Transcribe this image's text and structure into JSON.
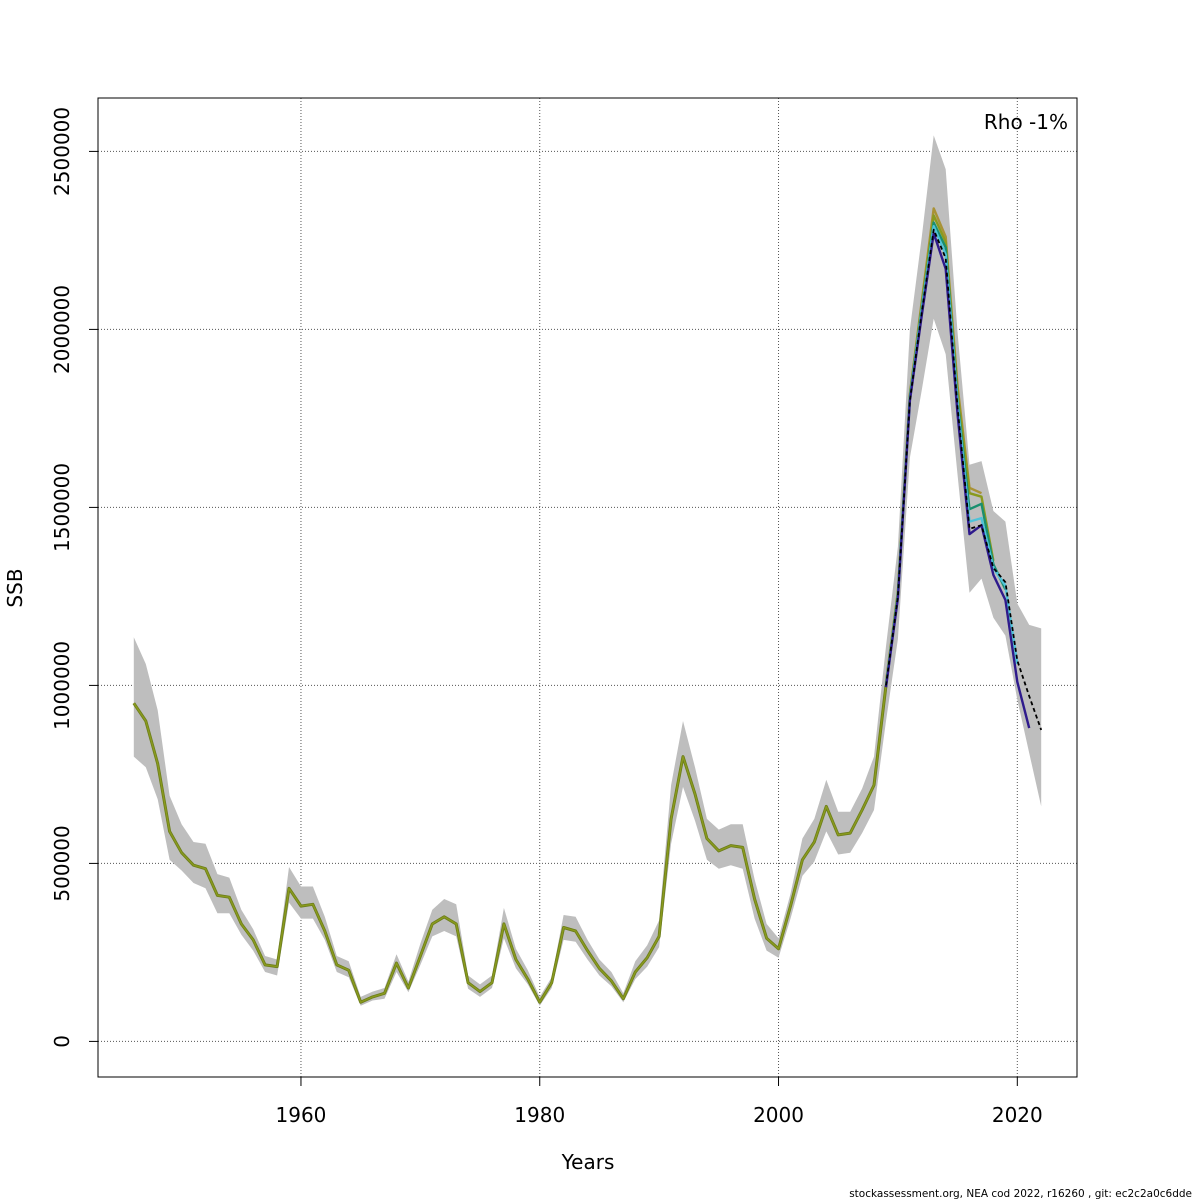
{
  "footer": "stockassessment.org, NEA  cod  2022, r16260 , git: ec2c2a0c6dde",
  "chart_data": {
    "type": "line",
    "title": "",
    "xlabel": "Years",
    "ylabel": "SSB",
    "annotation": "Rho -1%",
    "xlim": [
      1943,
      2025
    ],
    "ylim": [
      -100000,
      2650000
    ],
    "xticks": [
      1960,
      1980,
      2000,
      2020
    ],
    "yticks": [
      0,
      500000,
      1000000,
      1500000,
      2000000,
      2500000
    ],
    "grid": true,
    "colors": {
      "band": "#bebebe",
      "main": "#000000",
      "peel1": "#2e1a8c",
      "peel2": "#4fc3d9",
      "peel3": "#1a8f6f",
      "peel4": "#8a9a1e",
      "peel5": "#a99236",
      "grid": "#555555"
    },
    "years": [
      1946,
      1947,
      1948,
      1949,
      1950,
      1951,
      1952,
      1953,
      1954,
      1955,
      1956,
      1957,
      1958,
      1959,
      1960,
      1961,
      1962,
      1963,
      1964,
      1965,
      1966,
      1967,
      1968,
      1969,
      1970,
      1971,
      1972,
      1973,
      1974,
      1975,
      1976,
      1977,
      1978,
      1979,
      1980,
      1981,
      1982,
      1983,
      1984,
      1985,
      1986,
      1987,
      1988,
      1989,
      1990,
      1991,
      1992,
      1993,
      1994,
      1995,
      1996,
      1997,
      1998,
      1999,
      2000,
      2001,
      2002,
      2003,
      2004,
      2005,
      2006,
      2007,
      2008,
      2009,
      2010,
      2011,
      2012,
      2013,
      2014,
      2015,
      2016,
      2017,
      2018,
      2019,
      2020,
      2021,
      2022
    ],
    "ssb": [
      950000,
      900000,
      780000,
      590000,
      530000,
      495000,
      485000,
      410000,
      405000,
      330000,
      285000,
      215000,
      210000,
      430000,
      380000,
      385000,
      310000,
      215000,
      200000,
      110000,
      125000,
      135000,
      220000,
      150000,
      240000,
      330000,
      350000,
      330000,
      165000,
      140000,
      165000,
      330000,
      230000,
      175000,
      110000,
      165000,
      320000,
      310000,
      255000,
      205000,
      170000,
      120000,
      195000,
      235000,
      295000,
      625000,
      800000,
      695000,
      570000,
      535000,
      550000,
      545000,
      400000,
      290000,
      260000,
      380000,
      510000,
      560000,
      660000,
      580000,
      585000,
      650000,
      720000,
      1000000,
      1250000,
      1800000,
      2050000,
      2280000,
      2200000,
      1780000,
      1440000,
      1450000,
      1330000,
      1290000,
      1070000,
      970000,
      875000
    ],
    "lower": [
      800000,
      770000,
      680000,
      510000,
      480000,
      445000,
      430000,
      360000,
      360000,
      300000,
      255000,
      195000,
      185000,
      390000,
      345000,
      345000,
      285000,
      195000,
      180000,
      100000,
      115000,
      120000,
      195000,
      138000,
      215000,
      295000,
      310000,
      295000,
      148000,
      125000,
      150000,
      290000,
      205000,
      160000,
      100000,
      150000,
      285000,
      280000,
      230000,
      185000,
      155000,
      110000,
      175000,
      210000,
      265000,
      555000,
      715000,
      620000,
      510000,
      485000,
      495000,
      485000,
      345000,
      255000,
      235000,
      345000,
      465000,
      505000,
      590000,
      525000,
      530000,
      585000,
      650000,
      900000,
      1130000,
      1640000,
      1830000,
      2030000,
      1930000,
      1590000,
      1260000,
      1300000,
      1190000,
      1140000,
      960000,
      810000,
      660000
    ],
    "upper": [
      1135000,
      1060000,
      930000,
      690000,
      610000,
      560000,
      555000,
      470000,
      460000,
      370000,
      315000,
      240000,
      230000,
      490000,
      435000,
      435000,
      350000,
      240000,
      225000,
      125000,
      140000,
      150000,
      245000,
      168000,
      275000,
      370000,
      400000,
      385000,
      185000,
      160000,
      185000,
      375000,
      260000,
      200000,
      125000,
      180000,
      355000,
      350000,
      285000,
      230000,
      195000,
      135000,
      225000,
      270000,
      340000,
      720000,
      900000,
      770000,
      625000,
      595000,
      610000,
      610000,
      455000,
      330000,
      290000,
      415000,
      570000,
      625000,
      735000,
      645000,
      645000,
      710000,
      800000,
      1110000,
      1390000,
      2000000,
      2260000,
      2545000,
      2450000,
      1990000,
      1620000,
      1630000,
      1490000,
      1460000,
      1230000,
      1170000,
      1160000
    ],
    "series": [
      {
        "years": [
          1946,
          1947,
          1948,
          1949,
          1950,
          1951,
          1952,
          1953,
          1954,
          1955,
          1956,
          1957,
          1958,
          1959,
          1960,
          1961,
          1962,
          1963,
          1964,
          1965,
          1966,
          1967,
          1968,
          1969,
          1970,
          1971,
          1972,
          1973,
          1974,
          1975,
          1976,
          1977,
          1978,
          1979,
          1980,
          1981,
          1982,
          1983,
          1984,
          1985,
          1986,
          1987,
          1988,
          1989,
          1990,
          1991,
          1992,
          1993,
          1994,
          1995,
          1996,
          1997,
          1998,
          1999,
          2000,
          2001,
          2002,
          2003,
          2004,
          2005,
          2006,
          2007,
          2008,
          2009,
          2010,
          2011,
          2012,
          2013,
          2014,
          2015,
          2016,
          2017,
          2018,
          2019,
          2020,
          2021,
          2022
        ],
        "values": [
          950000,
          900000,
          780000,
          590000,
          530000,
          495000,
          485000,
          410000,
          405000,
          330000,
          285000,
          215000,
          210000,
          430000,
          380000,
          385000,
          310000,
          215000,
          200000,
          110000,
          125000,
          135000,
          220000,
          150000,
          240000,
          330000,
          350000,
          330000,
          165000,
          140000,
          165000,
          330000,
          230000,
          175000,
          110000,
          165000,
          320000,
          310000,
          255000,
          205000,
          170000,
          120000,
          195000,
          235000,
          295000,
          625000,
          800000,
          695000,
          570000,
          535000,
          550000,
          545000,
          400000,
          290000,
          260000,
          380000,
          510000,
          560000,
          660000,
          580000,
          585000,
          650000,
          720000,
          1000000,
          1250000,
          1800000,
          2050000,
          2280000,
          2200000,
          1780000,
          1440000,
          1450000,
          1330000,
          1290000,
          1070000,
          970000,
          875000
        ],
        "color": "#000000",
        "dash": true
      },
      {
        "years": [
          2009,
          2010,
          2011,
          2012,
          2013,
          2014,
          2015,
          2016,
          2017,
          2018,
          2019,
          2020,
          2021
        ],
        "values": [
          995000,
          1245000,
          1800000,
          2040000,
          2270000,
          2170000,
          1760000,
          1425000,
          1450000,
          1310000,
          1240000,
          1010000,
          880000
        ],
        "color": "#2e1a8c",
        "dash": false
      },
      {
        "years": [
          2009,
          2010,
          2011,
          2012,
          2013,
          2014,
          2015,
          2016,
          2017,
          2018,
          2019,
          2020
        ],
        "values": [
          1000000,
          1250000,
          1805000,
          2055000,
          2290000,
          2210000,
          1790000,
          1460000,
          1470000,
          1330000,
          1280000,
          1060000
        ],
        "color": "#4fc3d9",
        "dash": false
      },
      {
        "years": [
          2009,
          2010,
          2011,
          2012,
          2013,
          2014,
          2015,
          2016,
          2017,
          2018,
          2019
        ],
        "values": [
          1000000,
          1255000,
          1810000,
          2060000,
          2300000,
          2230000,
          1800000,
          1495000,
          1510000,
          1340000,
          1270000
        ],
        "color": "#1a8f6f",
        "dash": false
      },
      {
        "years": [
          2009,
          2010,
          2011,
          2012,
          2013,
          2014,
          2015,
          2016,
          2017,
          2018
        ],
        "values": [
          1005000,
          1260000,
          1815000,
          2070000,
          2320000,
          2245000,
          1820000,
          1540000,
          1530000,
          1350000
        ],
        "color": "#8a9a1e",
        "dash": false
      },
      {
        "years": [
          2009,
          2010,
          2011,
          2012,
          2013,
          2014,
          2015,
          2016,
          2017
        ],
        "values": [
          1010000,
          1265000,
          1820000,
          2080000,
          2340000,
          2260000,
          1840000,
          1555000,
          1540000
        ],
        "color": "#a99236",
        "dash": false
      }
    ]
  }
}
